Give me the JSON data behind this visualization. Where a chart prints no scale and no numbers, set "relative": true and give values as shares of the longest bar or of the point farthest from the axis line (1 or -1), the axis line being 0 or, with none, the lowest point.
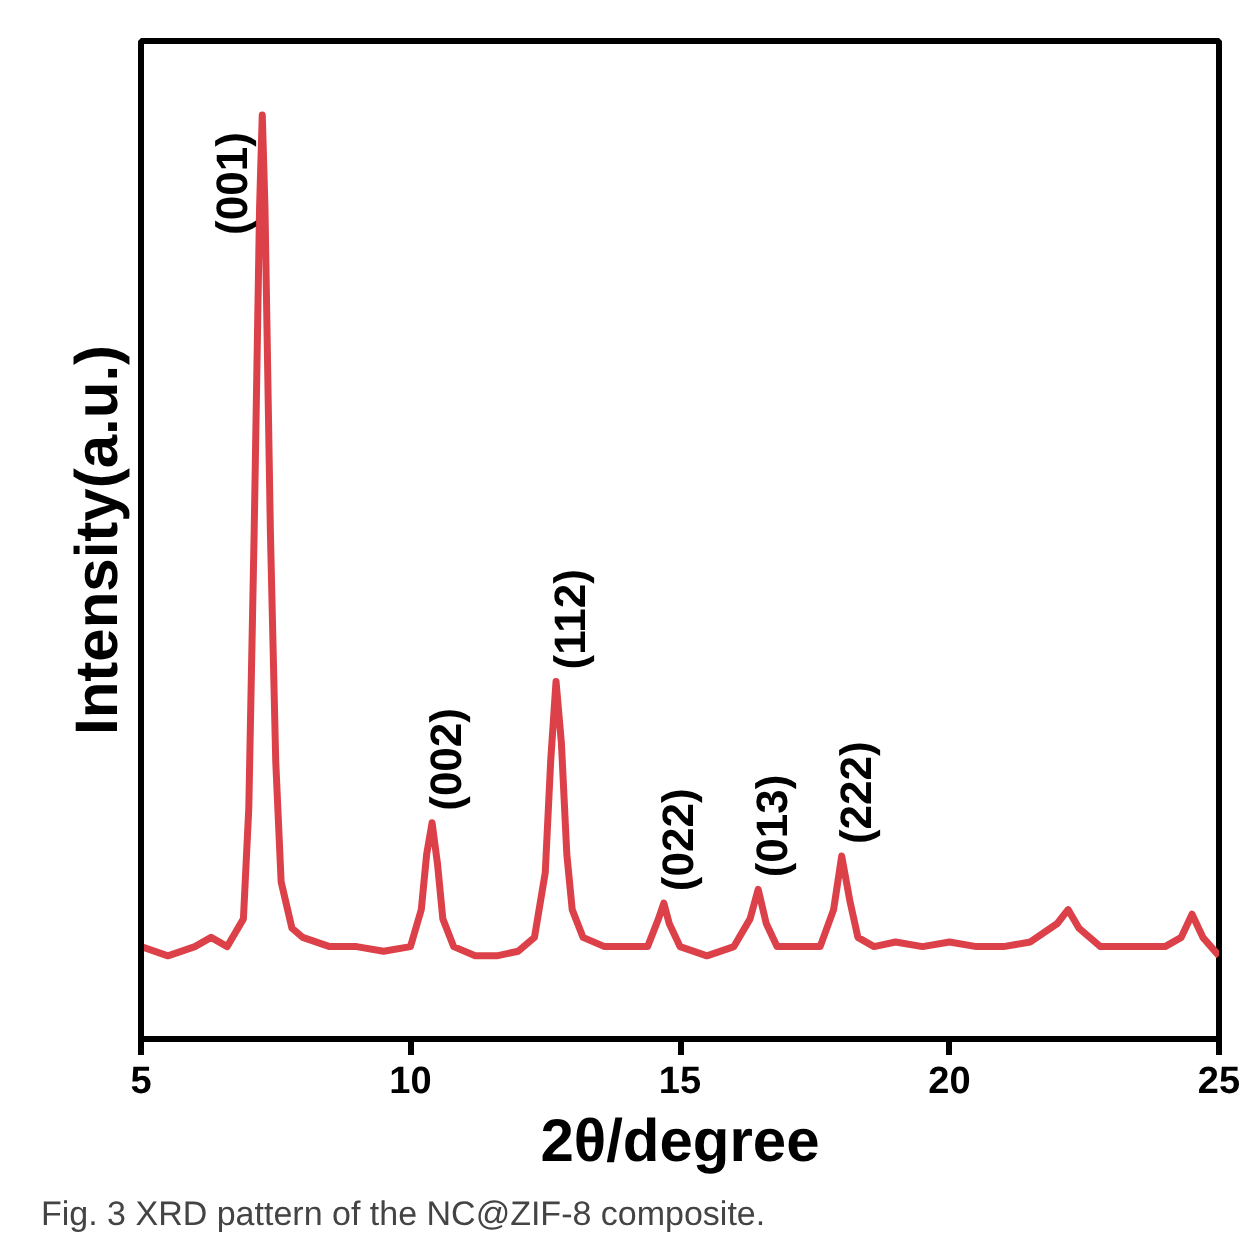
{
  "chart_data": {
    "type": "line",
    "relative": true,
    "xlabel": "2θ/degree",
    "ylabel": "Intensity(a.u.)",
    "xlim": [
      5,
      25
    ],
    "xticks": [
      5,
      10,
      15,
      20,
      25
    ],
    "grid": false,
    "tick_labels": "x",
    "x": [
      5.0,
      5.5,
      6.0,
      6.3,
      6.6,
      6.9,
      7.0,
      7.1,
      7.2,
      7.25,
      7.3,
      7.4,
      7.5,
      7.6,
      7.8,
      8.0,
      8.5,
      9.0,
      9.5,
      10.0,
      10.2,
      10.3,
      10.4,
      10.5,
      10.6,
      10.8,
      11.2,
      11.6,
      12.0,
      12.3,
      12.5,
      12.6,
      12.7,
      12.8,
      12.9,
      13.0,
      13.2,
      13.6,
      14.0,
      14.4,
      14.6,
      14.7,
      14.8,
      15.0,
      15.5,
      16.0,
      16.3,
      16.45,
      16.6,
      16.8,
      17.2,
      17.6,
      17.85,
      18.0,
      18.15,
      18.3,
      18.6,
      19.0,
      19.5,
      20.0,
      20.5,
      21.0,
      21.5,
      22.0,
      22.2,
      22.4,
      22.8,
      23.2,
      23.6,
      24.0,
      24.3,
      24.5,
      24.7,
      25.0
    ],
    "series": [
      {
        "color": "#dc4149",
        "values": [
          0.1,
          0.09,
          0.1,
          0.11,
          0.1,
          0.13,
          0.25,
          0.55,
          0.9,
          1.0,
          0.9,
          0.55,
          0.3,
          0.17,
          0.12,
          0.11,
          0.1,
          0.1,
          0.095,
          0.1,
          0.14,
          0.2,
          0.234,
          0.19,
          0.13,
          0.1,
          0.09,
          0.09,
          0.095,
          0.11,
          0.18,
          0.3,
          0.387,
          0.32,
          0.2,
          0.14,
          0.11,
          0.1,
          0.1,
          0.1,
          0.13,
          0.147,
          0.125,
          0.1,
          0.09,
          0.1,
          0.13,
          0.162,
          0.125,
          0.1,
          0.1,
          0.1,
          0.14,
          0.198,
          0.15,
          0.11,
          0.1,
          0.105,
          0.1,
          0.105,
          0.1,
          0.1,
          0.105,
          0.125,
          0.14,
          0.12,
          0.1,
          0.1,
          0.1,
          0.1,
          0.11,
          0.135,
          0.11,
          0.09
        ]
      }
    ],
    "annotations": [
      {
        "text": "(001)",
        "x": 7.25,
        "y": 1.0
      },
      {
        "text": "(002)",
        "x": 10.4,
        "y": 0.234
      },
      {
        "text": "(112)",
        "x": 12.7,
        "y": 0.387
      },
      {
        "text": "(022)",
        "x": 14.7,
        "y": 0.147
      },
      {
        "text": "(013)",
        "x": 16.45,
        "y": 0.162
      },
      {
        "text": "(222)",
        "x": 18.0,
        "y": 0.198
      },
      "Fig. 3 XRD pattern of the NC@ZIF-8 composite."
    ]
  }
}
